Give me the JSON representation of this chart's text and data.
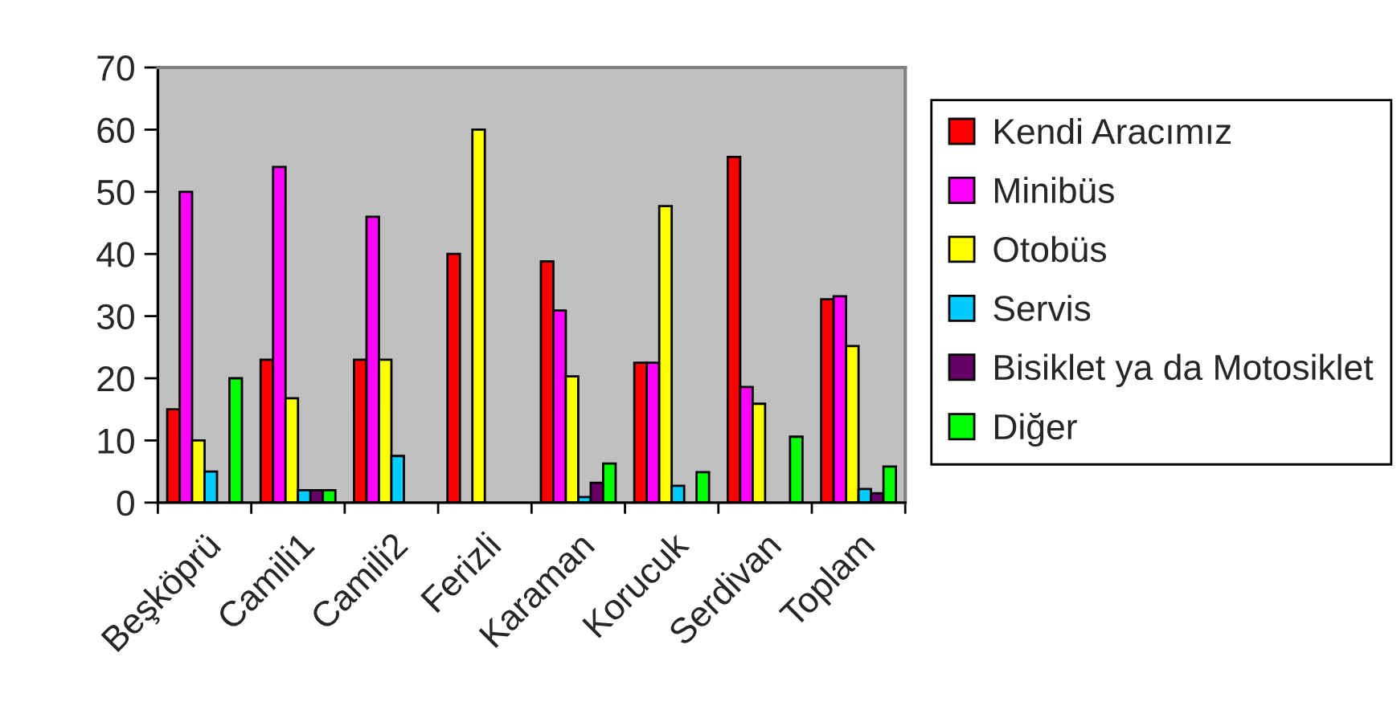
{
  "chart_data": {
    "type": "bar",
    "categories": [
      "Beşköprü",
      "Camili1",
      "Camili2",
      "Ferizli",
      "Karaman",
      "Korucuk",
      "Serdivan",
      "Toplam"
    ],
    "series": [
      {
        "name": "Kendi Aracımız",
        "color": "#ff0000",
        "values": [
          15,
          23,
          23,
          40,
          38.8,
          22.5,
          55.6,
          32.7
        ]
      },
      {
        "name": "Minibüs",
        "color": "#ff00ff",
        "values": [
          50,
          54,
          46,
          null,
          30.9,
          22.5,
          18.6,
          33.2
        ]
      },
      {
        "name": "Otobüs",
        "color": "#ffff00",
        "values": [
          10,
          16.8,
          23,
          60,
          20.3,
          47.7,
          15.9,
          25.2
        ]
      },
      {
        "name": "Servis",
        "color": "#00ccff",
        "values": [
          5,
          2,
          7.5,
          null,
          0.9,
          2.7,
          null,
          2.2
        ]
      },
      {
        "name": "Bisiklet ya da Motosiklet",
        "color": "#660066",
        "values": [
          null,
          2,
          null,
          null,
          3.2,
          null,
          null,
          1.5
        ]
      },
      {
        "name": "Diğer",
        "color": "#00ff00",
        "values": [
          20,
          2,
          null,
          null,
          6.3,
          4.9,
          10.6,
          5.8
        ]
      }
    ],
    "ylim": [
      0,
      70
    ],
    "yticks": [
      0,
      10,
      20,
      30,
      40,
      50,
      60,
      70
    ],
    "legend": "right"
  }
}
